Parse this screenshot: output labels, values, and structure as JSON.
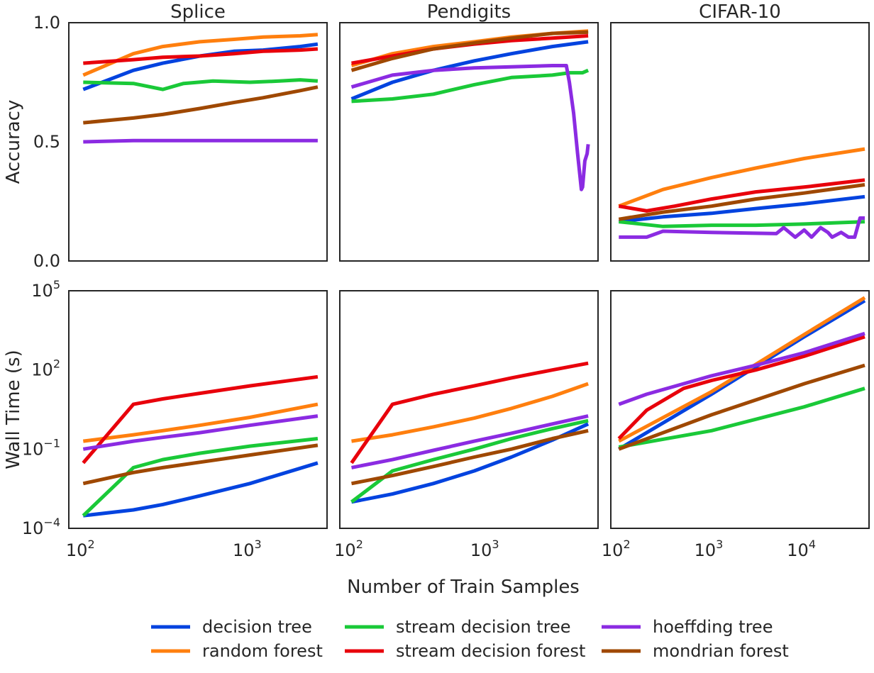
{
  "chart_data": {
    "type": "line",
    "layout": "2x3 facet grid, shared x per column, shared y per row",
    "xlabel": "Number of Train Samples",
    "colors": {
      "decision tree": "#0343df",
      "random forest": "#ff7f0e",
      "stream decision tree": "#1ac938",
      "stream decision forest": "#e8000b",
      "hoeffding tree": "#8b2be2",
      "mondrian forest": "#9f4800"
    },
    "legend": {
      "placement": "bottom-center, 3 columns",
      "entries": [
        "decision tree",
        "random forest",
        "stream decision tree",
        "stream decision forest",
        "hoeffding tree",
        "mondrian forest"
      ]
    },
    "rows": [
      {
        "key": "accuracy",
        "ylabel": "Accuracy",
        "yscale": "linear",
        "ylim": [
          0,
          1
        ],
        "yticks": [
          {
            "label": "0.0",
            "value": 0
          },
          {
            "label": "0.5",
            "value": 0.5
          },
          {
            "label": "1.0",
            "value": 1
          }
        ]
      },
      {
        "key": "walltime",
        "ylabel": "Wall Time (s)",
        "yscale": "log",
        "ylim": [
          0.0001,
          100000
        ],
        "yticks": [
          {
            "base": "10",
            "exp": "5",
            "value": 100000
          },
          {
            "base": "10",
            "exp": "2",
            "value": 100
          },
          {
            "base": "10",
            "exp": "−1",
            "value": 0.1
          },
          {
            "base": "10",
            "exp": "−4",
            "value": 0.0001
          }
        ]
      }
    ],
    "columns": [
      {
        "title": "Splice",
        "xscale": "log",
        "xlim": [
          82,
          2900
        ],
        "xticks": [
          {
            "base": "10",
            "exp": "2",
            "value": 100
          },
          {
            "base": "10",
            "exp": "3",
            "value": 1000
          }
        ],
        "accuracy": [
          {
            "name": "decision tree",
            "x": [
              100,
              200,
              300,
              500,
              800,
              1200,
              2000,
              2550
            ],
            "y": [
              0.72,
              0.8,
              0.83,
              0.86,
              0.88,
              0.885,
              0.9,
              0.91
            ]
          },
          {
            "name": "random forest",
            "x": [
              100,
              200,
              300,
              500,
              800,
              1200,
              2000,
              2550
            ],
            "y": [
              0.78,
              0.87,
              0.9,
              0.92,
              0.93,
              0.94,
              0.945,
              0.95
            ]
          },
          {
            "name": "stream decision tree",
            "x": [
              100,
              200,
              300,
              400,
              600,
              1000,
              1500,
              2000,
              2550
            ],
            "y": [
              0.75,
              0.745,
              0.72,
              0.745,
              0.755,
              0.75,
              0.755,
              0.76,
              0.755
            ]
          },
          {
            "name": "stream decision forest",
            "x": [
              100,
              200,
              300,
              500,
              800,
              1200,
              2000,
              2550
            ],
            "y": [
              0.83,
              0.845,
              0.855,
              0.86,
              0.87,
              0.88,
              0.885,
              0.89
            ]
          },
          {
            "name": "hoeffding tree",
            "x": [
              100,
              200,
              300,
              500,
              1000,
              2550
            ],
            "y": [
              0.5,
              0.505,
              0.505,
              0.505,
              0.505,
              0.505
            ]
          },
          {
            "name": "mondrian forest",
            "x": [
              100,
              200,
              300,
              500,
              800,
              1200,
              2000,
              2550
            ],
            "y": [
              0.58,
              0.6,
              0.615,
              0.64,
              0.665,
              0.685,
              0.715,
              0.73
            ]
          }
        ],
        "walltime": [
          {
            "name": "decision tree",
            "x": [
              100,
              200,
              300,
              500,
              1000,
              2550
            ],
            "y": [
              0.0003,
              0.0005,
              0.0008,
              0.0017,
              0.005,
              0.03
            ]
          },
          {
            "name": "random forest",
            "x": [
              100,
              200,
              300,
              500,
              1000,
              2550
            ],
            "y": [
              0.2,
              0.35,
              0.5,
              0.8,
              1.6,
              5.0
            ]
          },
          {
            "name": "stream decision tree",
            "x": [
              100,
              200,
              300,
              500,
              1000,
              2550
            ],
            "y": [
              0.0003,
              0.02,
              0.04,
              0.07,
              0.13,
              0.25
            ]
          },
          {
            "name": "stream decision forest",
            "x": [
              100,
              200,
              300,
              500,
              1000,
              2550
            ],
            "y": [
              0.03,
              5.0,
              8.0,
              13.0,
              25.0,
              55.0
            ]
          },
          {
            "name": "hoeffding tree",
            "x": [
              100,
              200,
              300,
              500,
              1000,
              2550
            ],
            "y": [
              0.1,
              0.2,
              0.28,
              0.42,
              0.8,
              1.8
            ]
          },
          {
            "name": "mondrian forest",
            "x": [
              100,
              200,
              300,
              500,
              1000,
              2550
            ],
            "y": [
              0.005,
              0.013,
              0.02,
              0.032,
              0.06,
              0.14
            ]
          }
        ]
      },
      {
        "title": "Pendigits",
        "xscale": "log",
        "xlim": [
          82,
          6500
        ],
        "xticks": [
          {
            "base": "10",
            "exp": "2",
            "value": 100
          },
          {
            "base": "10",
            "exp": "3",
            "value": 1000
          }
        ],
        "accuracy": [
          {
            "name": "decision tree",
            "x": [
              100,
              200,
              400,
              800,
              1500,
              3000,
              5500
            ],
            "y": [
              0.68,
              0.75,
              0.8,
              0.84,
              0.87,
              0.9,
              0.92
            ]
          },
          {
            "name": "random forest",
            "x": [
              100,
              200,
              400,
              800,
              1500,
              3000,
              5500
            ],
            "y": [
              0.82,
              0.87,
              0.9,
              0.92,
              0.94,
              0.955,
              0.965
            ]
          },
          {
            "name": "stream decision tree",
            "x": [
              100,
              200,
              400,
              800,
              1500,
              3000,
              4000,
              5000,
              5500
            ],
            "y": [
              0.67,
              0.68,
              0.7,
              0.74,
              0.77,
              0.78,
              0.79,
              0.79,
              0.8
            ]
          },
          {
            "name": "stream decision forest",
            "x": [
              100,
              200,
              400,
              800,
              1500,
              3000,
              5500
            ],
            "y": [
              0.83,
              0.86,
              0.89,
              0.91,
              0.925,
              0.935,
              0.945
            ]
          },
          {
            "name": "hoeffding tree",
            "x": [
              100,
              200,
              400,
              800,
              1500,
              3000,
              3800,
              4000,
              4300,
              4600,
              4900,
              5000,
              5200,
              5400,
              5500
            ],
            "y": [
              0.73,
              0.78,
              0.8,
              0.81,
              0.815,
              0.82,
              0.82,
              0.75,
              0.62,
              0.45,
              0.3,
              0.31,
              0.42,
              0.45,
              0.49
            ]
          },
          {
            "name": "mondrian forest",
            "x": [
              100,
              200,
              400,
              800,
              1500,
              3000,
              5500
            ],
            "y": [
              0.8,
              0.85,
              0.89,
              0.915,
              0.935,
              0.955,
              0.96
            ]
          }
        ],
        "walltime": [
          {
            "name": "decision tree",
            "x": [
              100,
              200,
              400,
              800,
              1500,
              3000,
              5500
            ],
            "y": [
              0.001,
              0.002,
              0.005,
              0.015,
              0.05,
              0.22,
              0.9
            ]
          },
          {
            "name": "random forest",
            "x": [
              100,
              200,
              400,
              800,
              1500,
              3000,
              5500
            ],
            "y": [
              0.2,
              0.35,
              0.7,
              1.5,
              3.5,
              10.0,
              30.0
            ]
          },
          {
            "name": "stream decision tree",
            "x": [
              100,
              200,
              400,
              800,
              1500,
              3000,
              5500
            ],
            "y": [
              0.001,
              0.015,
              0.04,
              0.1,
              0.25,
              0.6,
              1.2
            ]
          },
          {
            "name": "stream decision forest",
            "x": [
              100,
              200,
              400,
              800,
              1500,
              3000,
              5500
            ],
            "y": [
              0.03,
              5.0,
              12.0,
              25.0,
              50.0,
              100.0,
              180.0
            ]
          },
          {
            "name": "hoeffding tree",
            "x": [
              100,
              200,
              400,
              800,
              1500,
              3000,
              5500
            ],
            "y": [
              0.02,
              0.04,
              0.09,
              0.2,
              0.4,
              0.9,
              1.8
            ]
          },
          {
            "name": "mondrian forest",
            "x": [
              100,
              200,
              400,
              800,
              1500,
              3000,
              5500
            ],
            "y": [
              0.005,
              0.01,
              0.022,
              0.05,
              0.1,
              0.25,
              0.5
            ]
          }
        ]
      },
      {
        "title": "CIFAR-10",
        "xscale": "log",
        "xlim": [
          82,
          50000
        ],
        "xticks": [
          {
            "base": "10",
            "exp": "2",
            "value": 100
          },
          {
            "base": "10",
            "exp": "3",
            "value": 1000
          },
          {
            "base": "10",
            "exp": "4",
            "value": 10000
          }
        ],
        "accuracy": [
          {
            "name": "decision tree",
            "x": [
              100,
              300,
              1000,
              3000,
              10000,
              45000
            ],
            "y": [
              0.165,
              0.185,
              0.2,
              0.22,
              0.24,
              0.27
            ]
          },
          {
            "name": "random forest",
            "x": [
              100,
              300,
              1000,
              3000,
              10000,
              45000
            ],
            "y": [
              0.23,
              0.3,
              0.35,
              0.39,
              0.43,
              0.47
            ]
          },
          {
            "name": "stream decision tree",
            "x": [
              100,
              300,
              1000,
              3000,
              10000,
              45000
            ],
            "y": [
              0.165,
              0.145,
              0.15,
              0.15,
              0.155,
              0.165
            ]
          },
          {
            "name": "stream decision forest",
            "x": [
              100,
              200,
              400,
              1000,
              3000,
              10000,
              45000
            ],
            "y": [
              0.23,
              0.21,
              0.23,
              0.26,
              0.29,
              0.31,
              0.34
            ]
          },
          {
            "name": "hoeffding tree",
            "x": [
              100,
              200,
              300,
              1000,
              5000,
              6000,
              8000,
              10000,
              12000,
              15000,
              18000,
              20000,
              25000,
              30000,
              35000,
              40000,
              45000
            ],
            "y": [
              0.1,
              0.1,
              0.125,
              0.12,
              0.115,
              0.14,
              0.1,
              0.13,
              0.1,
              0.14,
              0.12,
              0.1,
              0.12,
              0.1,
              0.1,
              0.18,
              0.18
            ]
          },
          {
            "name": "mondrian forest",
            "x": [
              100,
              300,
              1000,
              3000,
              10000,
              45000
            ],
            "y": [
              0.175,
              0.205,
              0.23,
              0.26,
              0.285,
              0.32
            ]
          }
        ],
        "walltime": [
          {
            "name": "decision tree",
            "x": [
              100,
              1000,
              10000,
              45000
            ],
            "y": [
              0.1,
              12.0,
              1800.0,
              42000.0
            ]
          },
          {
            "name": "random forest",
            "x": [
              100,
              1000,
              10000,
              45000
            ],
            "y": [
              0.2,
              15.0,
              2200.0,
              55000.0
            ]
          },
          {
            "name": "stream decision tree",
            "x": [
              100,
              1000,
              10000,
              45000
            ],
            "y": [
              0.12,
              0.5,
              4.0,
              20.0
            ]
          },
          {
            "name": "stream decision forest",
            "x": [
              100,
              200,
              500,
              1000,
              3000,
              10000,
              45000
            ],
            "y": [
              0.25,
              3.0,
              20.0,
              40.0,
              100.0,
              330.0,
              1800.0
            ]
          },
          {
            "name": "hoeffding tree",
            "x": [
              100,
              200,
              500,
              1000,
              3000,
              10000,
              45000
            ],
            "y": [
              5.0,
              12.0,
              30.0,
              60.0,
              150.0,
              450.0,
              2400.0
            ]
          },
          {
            "name": "mondrian forest",
            "x": [
              100,
              1000,
              10000,
              45000
            ],
            "y": [
              0.1,
              2.0,
              30.0,
              150.0
            ]
          }
        ]
      }
    ]
  }
}
